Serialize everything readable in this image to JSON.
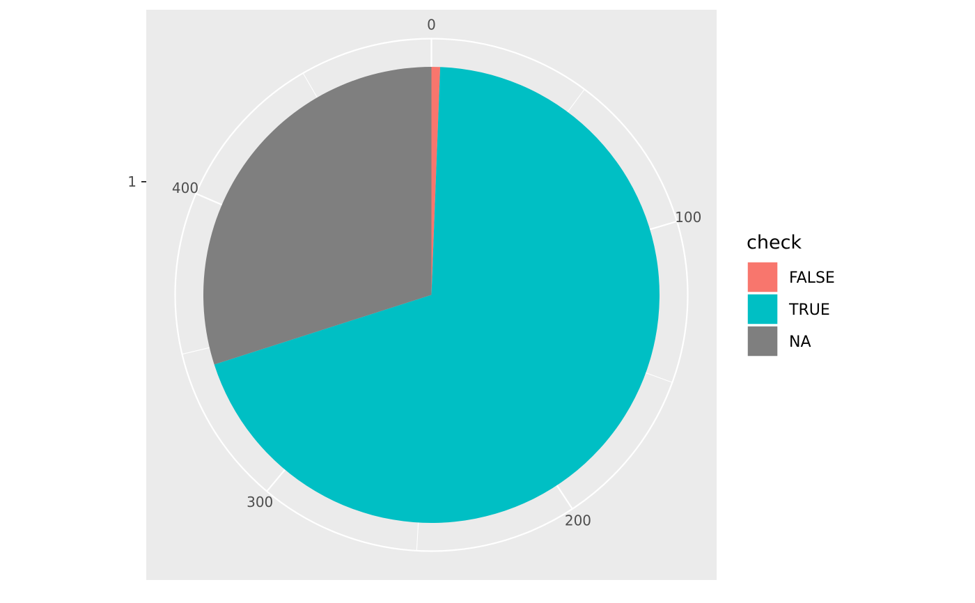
{
  "chart_data": {
    "type": "pie",
    "theta_axis": {
      "ticks": [
        0,
        100,
        200,
        300,
        400
      ],
      "tick_labels": [
        "0",
        "100",
        "200",
        "300",
        "400"
      ],
      "range": [
        0,
        491
      ]
    },
    "y_axis": {
      "tick_labels": [
        "1"
      ]
    },
    "slices": [
      {
        "label": "FALSE",
        "value": 3,
        "color": "#F8766D"
      },
      {
        "label": "TRUE",
        "value": 341,
        "color": "#00BFC4"
      },
      {
        "label": "NA",
        "value": 147,
        "color": "#7F7F7F"
      }
    ],
    "legend": {
      "title": "check",
      "position": "right",
      "items": [
        {
          "label": "FALSE",
          "color": "#F8766D"
        },
        {
          "label": "TRUE",
          "color": "#00BFC4"
        },
        {
          "label": "NA",
          "color": "#7F7F7F"
        }
      ]
    },
    "panel_background": "#EBEBEB",
    "grid_color": "#FFFFFF"
  }
}
